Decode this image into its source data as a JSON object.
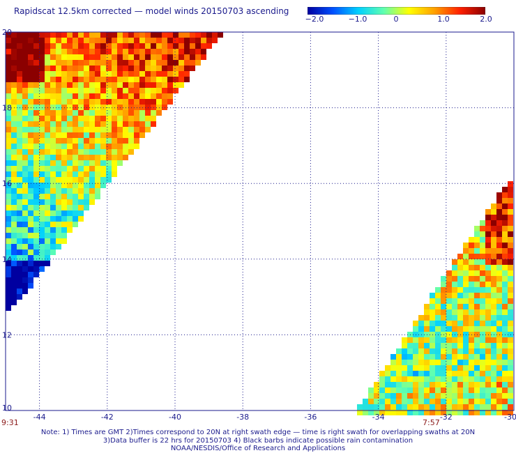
{
  "title": "Rapidscat 12.5km corrected — model winds 20150703 ascending",
  "colorbar": {
    "tick_labels": [
      "−2.0",
      "−1.0",
      "0",
      "1.0",
      "2.0"
    ],
    "min": -2.0,
    "max": 2.0,
    "colors": [
      "#0000a0",
      "#0050ff",
      "#00d0ff",
      "#60ffb0",
      "#ffff00",
      "#ffa000",
      "#ff2000",
      "#8b0000"
    ]
  },
  "map": {
    "lon_ticks": [
      "-44",
      "-42",
      "-40",
      "-38",
      "-36",
      "-34",
      "-32",
      "-30"
    ],
    "lat_ticks": [
      "20",
      "18",
      "16",
      "14",
      "12",
      "10"
    ],
    "lon_range": [
      -45,
      -30
    ],
    "lat_range": [
      10,
      20
    ]
  },
  "chart_data": {
    "type": "heatmap",
    "title": "Rapidscat 12.5km corrected — model winds 20150703 ascending",
    "xlim": [
      -45,
      -30
    ],
    "ylim": [
      10,
      20
    ],
    "color_range": [
      -2.0,
      2.0
    ]
  },
  "times": {
    "left": "9:31",
    "center": "7:57"
  },
  "notes": [
    "Note: 1) Times are GMT 2)Times correspond to 20N at right swath edge — time is right swath for overlapping swaths at 20N",
    "3)Data buffer is 22 hrs for 20150703 4) Black barbs indicate possible rain contamination",
    "NOAA/NESDIS/Office of Research and Applications"
  ]
}
